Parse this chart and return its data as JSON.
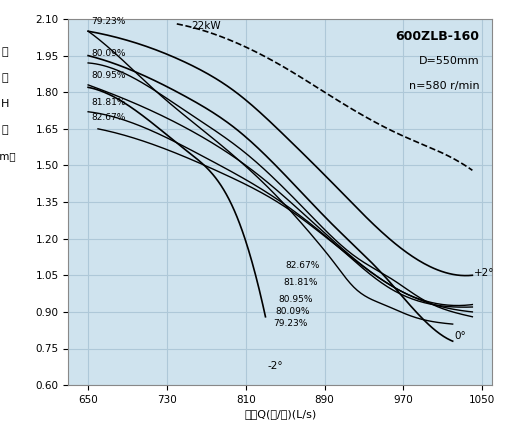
{
  "title_text": "600ZLB-160",
  "subtitle1": "D=550mm",
  "subtitle2": "n=580 r/min",
  "ylabel": "扬程\nH\n米\n（m）",
  "xlabel": "流量Q(升/秒)(L/s)",
  "xlim": [
    630,
    1060
  ],
  "ylim": [
    0.6,
    2.1
  ],
  "xticks": [
    650,
    730,
    810,
    890,
    970,
    1050
  ],
  "yticks": [
    0.6,
    0.75,
    0.9,
    1.05,
    1.2,
    1.35,
    1.5,
    1.65,
    1.8,
    1.95,
    2.1
  ],
  "bg_color": "#cfe3ee",
  "grid_color": "#aec8d8",
  "power_curve_label": "22kW",
  "angle_labels": [
    "+2°",
    "0°",
    "-2°"
  ],
  "efficiency_labels_top": [
    "79.23%",
    "80.09%",
    "80.95%",
    "81.81%",
    "82.67%"
  ],
  "efficiency_labels_bottom": [
    "82.67%",
    "81.81%",
    "80.95%",
    "80.09%",
    "79.23%"
  ],
  "head_curves": {
    "plus2": {
      "Q": [
        650,
        700,
        750,
        800,
        850,
        900,
        950,
        1000,
        1040
      ],
      "H": [
        2.05,
        2.0,
        1.92,
        1.8,
        1.62,
        1.42,
        1.22,
        1.08,
        1.05
      ]
    },
    "zero": {
      "Q": [
        650,
        700,
        750,
        800,
        850,
        900,
        950,
        990,
        1020
      ],
      "H": [
        1.95,
        1.88,
        1.78,
        1.65,
        1.46,
        1.25,
        1.05,
        0.87,
        0.78
      ]
    },
    "minus2": {
      "Q": [
        650,
        700,
        750,
        800,
        820,
        830
      ],
      "H": [
        1.82,
        1.72,
        1.56,
        1.3,
        1.05,
        0.88
      ]
    }
  },
  "efficiency_curves": {
    "7923": {
      "Q": [
        650,
        680,
        720,
        780,
        840,
        880,
        900,
        920,
        950,
        980,
        1000,
        1020
      ],
      "H": [
        2.05,
        1.95,
        1.8,
        1.6,
        1.38,
        1.2,
        1.1,
        1.0,
        0.93,
        0.88,
        0.86,
        0.85
      ]
    },
    "8009": {
      "Q": [
        650,
        700,
        750,
        810,
        870,
        920,
        960,
        990,
        1020,
        1040
      ],
      "H": [
        1.92,
        1.85,
        1.72,
        1.55,
        1.32,
        1.13,
        1.03,
        0.95,
        0.9,
        0.88
      ]
    },
    "8095": {
      "Q": [
        650,
        700,
        760,
        820,
        880,
        935,
        975,
        1010,
        1040
      ],
      "H": [
        1.83,
        1.75,
        1.63,
        1.47,
        1.26,
        1.07,
        0.97,
        0.92,
        0.9
      ]
    },
    "8181": {
      "Q": [
        650,
        710,
        770,
        835,
        900,
        955,
        1000,
        1040
      ],
      "H": [
        1.72,
        1.65,
        1.53,
        1.38,
        1.18,
        1.0,
        0.93,
        0.92
      ]
    },
    "8267": {
      "Q": [
        660,
        720,
        785,
        850,
        915,
        970,
        1010,
        1040
      ],
      "H": [
        1.65,
        1.58,
        1.47,
        1.33,
        1.13,
        0.98,
        0.93,
        0.93
      ]
    }
  },
  "power_curve": {
    "Q": [
      740,
      790,
      850,
      910,
      970,
      1010,
      1040
    ],
    "H": [
      2.08,
      2.02,
      1.9,
      1.75,
      1.62,
      1.55,
      1.48
    ]
  }
}
